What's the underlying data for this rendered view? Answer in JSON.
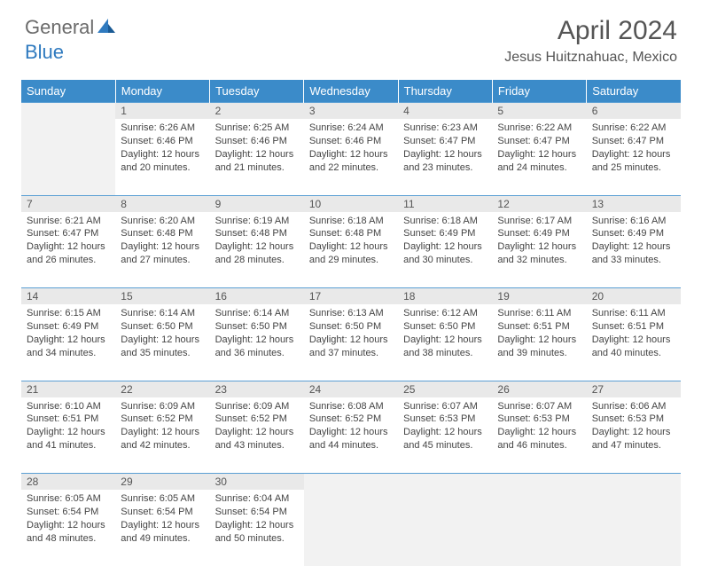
{
  "logo": {
    "general": "General",
    "blue": "Blue"
  },
  "title": "April 2024",
  "location": "Jesus Huitznahuac, Mexico",
  "colors": {
    "header_bg": "#3b8bc9",
    "header_text": "#ffffff",
    "daynum_bg": "#e9e9e9",
    "border_top": "#5a9fd4",
    "empty_bg": "#f2f2f2",
    "text": "#444444",
    "title_color": "#555555"
  },
  "weekdays": [
    "Sunday",
    "Monday",
    "Tuesday",
    "Wednesday",
    "Thursday",
    "Friday",
    "Saturday"
  ],
  "weeks": [
    [
      null,
      {
        "n": "1",
        "sr": "Sunrise: 6:26 AM",
        "ss": "Sunset: 6:46 PM",
        "d1": "Daylight: 12 hours",
        "d2": "and 20 minutes."
      },
      {
        "n": "2",
        "sr": "Sunrise: 6:25 AM",
        "ss": "Sunset: 6:46 PM",
        "d1": "Daylight: 12 hours",
        "d2": "and 21 minutes."
      },
      {
        "n": "3",
        "sr": "Sunrise: 6:24 AM",
        "ss": "Sunset: 6:46 PM",
        "d1": "Daylight: 12 hours",
        "d2": "and 22 minutes."
      },
      {
        "n": "4",
        "sr": "Sunrise: 6:23 AM",
        "ss": "Sunset: 6:47 PM",
        "d1": "Daylight: 12 hours",
        "d2": "and 23 minutes."
      },
      {
        "n": "5",
        "sr": "Sunrise: 6:22 AM",
        "ss": "Sunset: 6:47 PM",
        "d1": "Daylight: 12 hours",
        "d2": "and 24 minutes."
      },
      {
        "n": "6",
        "sr": "Sunrise: 6:22 AM",
        "ss": "Sunset: 6:47 PM",
        "d1": "Daylight: 12 hours",
        "d2": "and 25 minutes."
      }
    ],
    [
      {
        "n": "7",
        "sr": "Sunrise: 6:21 AM",
        "ss": "Sunset: 6:47 PM",
        "d1": "Daylight: 12 hours",
        "d2": "and 26 minutes."
      },
      {
        "n": "8",
        "sr": "Sunrise: 6:20 AM",
        "ss": "Sunset: 6:48 PM",
        "d1": "Daylight: 12 hours",
        "d2": "and 27 minutes."
      },
      {
        "n": "9",
        "sr": "Sunrise: 6:19 AM",
        "ss": "Sunset: 6:48 PM",
        "d1": "Daylight: 12 hours",
        "d2": "and 28 minutes."
      },
      {
        "n": "10",
        "sr": "Sunrise: 6:18 AM",
        "ss": "Sunset: 6:48 PM",
        "d1": "Daylight: 12 hours",
        "d2": "and 29 minutes."
      },
      {
        "n": "11",
        "sr": "Sunrise: 6:18 AM",
        "ss": "Sunset: 6:49 PM",
        "d1": "Daylight: 12 hours",
        "d2": "and 30 minutes."
      },
      {
        "n": "12",
        "sr": "Sunrise: 6:17 AM",
        "ss": "Sunset: 6:49 PM",
        "d1": "Daylight: 12 hours",
        "d2": "and 32 minutes."
      },
      {
        "n": "13",
        "sr": "Sunrise: 6:16 AM",
        "ss": "Sunset: 6:49 PM",
        "d1": "Daylight: 12 hours",
        "d2": "and 33 minutes."
      }
    ],
    [
      {
        "n": "14",
        "sr": "Sunrise: 6:15 AM",
        "ss": "Sunset: 6:49 PM",
        "d1": "Daylight: 12 hours",
        "d2": "and 34 minutes."
      },
      {
        "n": "15",
        "sr": "Sunrise: 6:14 AM",
        "ss": "Sunset: 6:50 PM",
        "d1": "Daylight: 12 hours",
        "d2": "and 35 minutes."
      },
      {
        "n": "16",
        "sr": "Sunrise: 6:14 AM",
        "ss": "Sunset: 6:50 PM",
        "d1": "Daylight: 12 hours",
        "d2": "and 36 minutes."
      },
      {
        "n": "17",
        "sr": "Sunrise: 6:13 AM",
        "ss": "Sunset: 6:50 PM",
        "d1": "Daylight: 12 hours",
        "d2": "and 37 minutes."
      },
      {
        "n": "18",
        "sr": "Sunrise: 6:12 AM",
        "ss": "Sunset: 6:50 PM",
        "d1": "Daylight: 12 hours",
        "d2": "and 38 minutes."
      },
      {
        "n": "19",
        "sr": "Sunrise: 6:11 AM",
        "ss": "Sunset: 6:51 PM",
        "d1": "Daylight: 12 hours",
        "d2": "and 39 minutes."
      },
      {
        "n": "20",
        "sr": "Sunrise: 6:11 AM",
        "ss": "Sunset: 6:51 PM",
        "d1": "Daylight: 12 hours",
        "d2": "and 40 minutes."
      }
    ],
    [
      {
        "n": "21",
        "sr": "Sunrise: 6:10 AM",
        "ss": "Sunset: 6:51 PM",
        "d1": "Daylight: 12 hours",
        "d2": "and 41 minutes."
      },
      {
        "n": "22",
        "sr": "Sunrise: 6:09 AM",
        "ss": "Sunset: 6:52 PM",
        "d1": "Daylight: 12 hours",
        "d2": "and 42 minutes."
      },
      {
        "n": "23",
        "sr": "Sunrise: 6:09 AM",
        "ss": "Sunset: 6:52 PM",
        "d1": "Daylight: 12 hours",
        "d2": "and 43 minutes."
      },
      {
        "n": "24",
        "sr": "Sunrise: 6:08 AM",
        "ss": "Sunset: 6:52 PM",
        "d1": "Daylight: 12 hours",
        "d2": "and 44 minutes."
      },
      {
        "n": "25",
        "sr": "Sunrise: 6:07 AM",
        "ss": "Sunset: 6:53 PM",
        "d1": "Daylight: 12 hours",
        "d2": "and 45 minutes."
      },
      {
        "n": "26",
        "sr": "Sunrise: 6:07 AM",
        "ss": "Sunset: 6:53 PM",
        "d1": "Daylight: 12 hours",
        "d2": "and 46 minutes."
      },
      {
        "n": "27",
        "sr": "Sunrise: 6:06 AM",
        "ss": "Sunset: 6:53 PM",
        "d1": "Daylight: 12 hours",
        "d2": "and 47 minutes."
      }
    ],
    [
      {
        "n": "28",
        "sr": "Sunrise: 6:05 AM",
        "ss": "Sunset: 6:54 PM",
        "d1": "Daylight: 12 hours",
        "d2": "and 48 minutes."
      },
      {
        "n": "29",
        "sr": "Sunrise: 6:05 AM",
        "ss": "Sunset: 6:54 PM",
        "d1": "Daylight: 12 hours",
        "d2": "and 49 minutes."
      },
      {
        "n": "30",
        "sr": "Sunrise: 6:04 AM",
        "ss": "Sunset: 6:54 PM",
        "d1": "Daylight: 12 hours",
        "d2": "and 50 minutes."
      },
      null,
      null,
      null,
      null
    ]
  ]
}
